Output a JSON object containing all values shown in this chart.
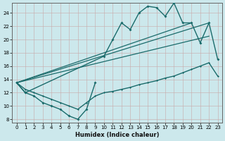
{
  "title": "",
  "xlabel": "Humidex (Indice chaleur)",
  "ylabel": "",
  "bg_color": "#cce8ec",
  "line_color": "#1a6b6b",
  "xlim": [
    -0.5,
    23.5
  ],
  "ylim": [
    7.5,
    25.5
  ],
  "xticks": [
    0,
    1,
    2,
    3,
    4,
    5,
    6,
    7,
    8,
    9,
    10,
    11,
    12,
    13,
    14,
    15,
    16,
    17,
    18,
    19,
    20,
    21,
    22,
    23
  ],
  "yticks": [
    8,
    10,
    12,
    14,
    16,
    18,
    20,
    22,
    24
  ],
  "curve_zigzag_x": [
    0,
    1,
    2,
    3,
    4,
    5,
    6,
    7,
    8,
    9
  ],
  "curve_zigzag_y": [
    13.5,
    12.0,
    11.5,
    10.5,
    10.0,
    9.5,
    8.5,
    8.0,
    9.5,
    13.5
  ],
  "curve_bottom_flat_x": [
    0,
    1,
    2,
    3,
    4,
    5,
    6,
    7,
    8,
    9,
    10,
    11,
    12,
    13,
    14,
    15,
    16,
    17,
    18,
    19,
    20,
    21,
    22,
    23
  ],
  "curve_bottom_flat_y": [
    13.5,
    12.5,
    12.0,
    11.5,
    11.0,
    10.5,
    10.0,
    9.5,
    10.5,
    11.5,
    12.0,
    12.2,
    12.5,
    12.8,
    13.2,
    13.5,
    13.8,
    14.2,
    14.5,
    15.0,
    15.5,
    16.0,
    16.5,
    14.5
  ],
  "curve_upper_x": [
    0,
    1,
    10,
    11,
    12,
    13,
    14,
    15,
    16,
    17,
    18,
    19,
    20,
    21,
    22,
    23
  ],
  "curve_upper_y": [
    13.5,
    12.0,
    17.5,
    20.0,
    22.5,
    21.5,
    24.0,
    25.0,
    24.8,
    23.5,
    25.5,
    22.5,
    22.5,
    19.5,
    22.5,
    17.0
  ],
  "line1_x": [
    0,
    20
  ],
  "line1_y": [
    13.5,
    22.5
  ],
  "line2_x": [
    0,
    22
  ],
  "line2_y": [
    13.5,
    22.5
  ],
  "line3_x": [
    0,
    22
  ],
  "line3_y": [
    13.5,
    20.5
  ]
}
